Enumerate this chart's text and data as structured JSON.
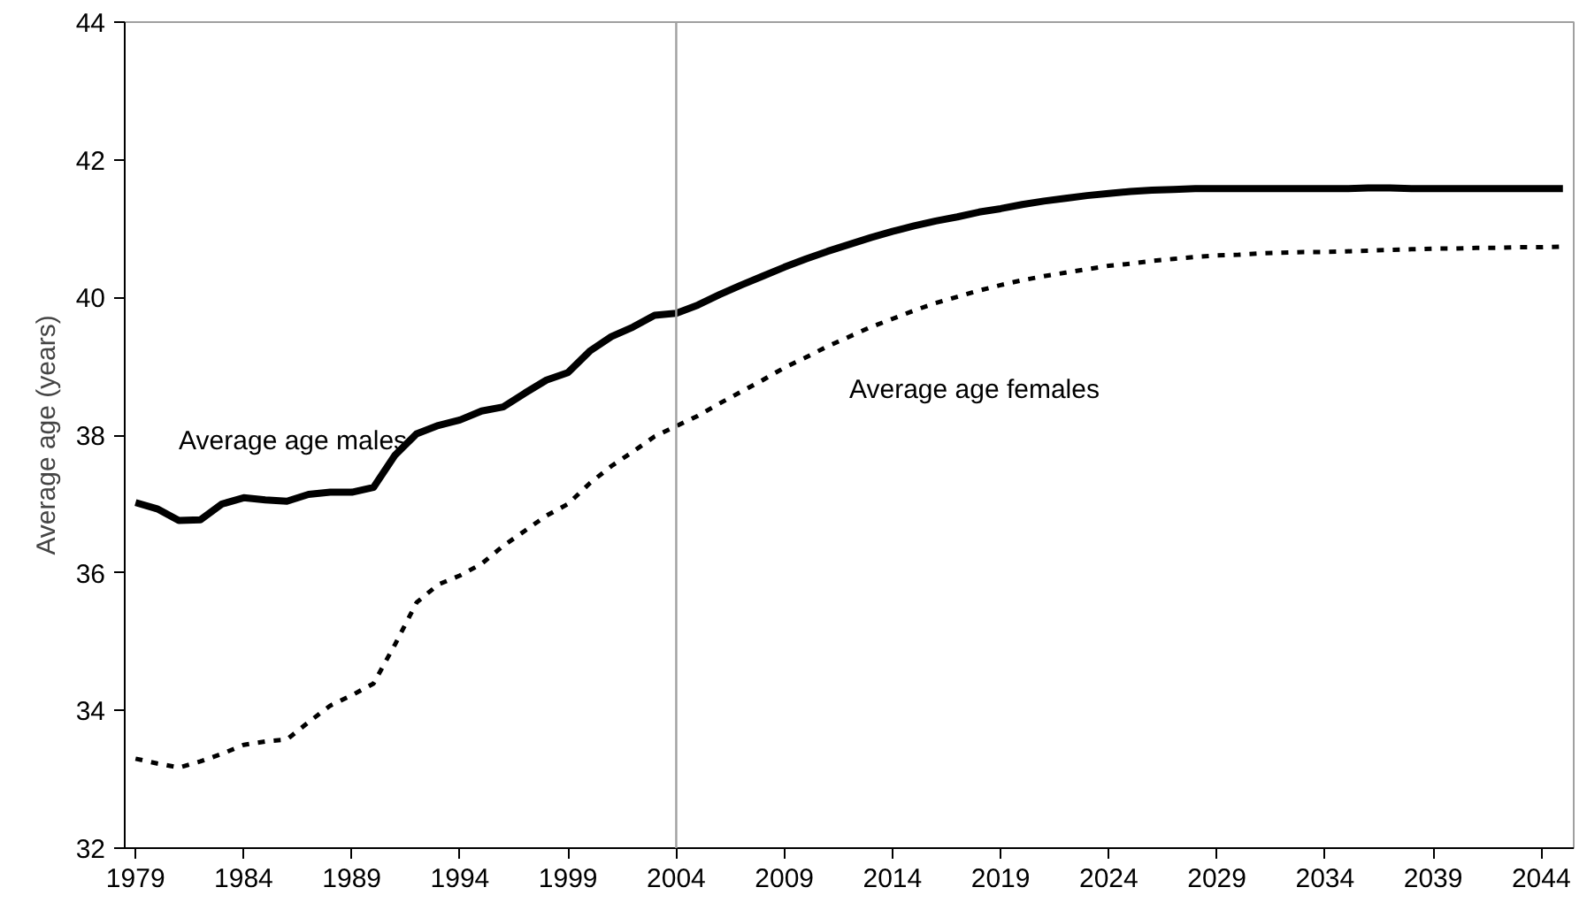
{
  "chart_data": {
    "type": "line",
    "ylabel": "Average age (years)",
    "x": [
      1979,
      1980,
      1981,
      1982,
      1983,
      1984,
      1985,
      1986,
      1987,
      1988,
      1989,
      1990,
      1991,
      1992,
      1993,
      1994,
      1995,
      1996,
      1997,
      1998,
      1999,
      2000,
      2001,
      2002,
      2003,
      2004,
      2005,
      2006,
      2007,
      2008,
      2009,
      2010,
      2011,
      2012,
      2013,
      2014,
      2015,
      2016,
      2017,
      2018,
      2019,
      2020,
      2021,
      2022,
      2023,
      2024,
      2025,
      2026,
      2027,
      2028,
      2029,
      2030,
      2031,
      2032,
      2033,
      2034,
      2035,
      2036,
      2037,
      2038,
      2039,
      2040,
      2041,
      2042,
      2043,
      2044,
      2045
    ],
    "series": [
      {
        "name": "Average age males",
        "color": "#000000",
        "line_style": "solid",
        "values": [
          37.02,
          36.93,
          36.76,
          36.77,
          37.0,
          37.09,
          37.06,
          37.04,
          37.14,
          37.17,
          37.17,
          37.24,
          37.71,
          38.02,
          38.14,
          38.22,
          38.35,
          38.41,
          38.61,
          38.8,
          38.91,
          39.22,
          39.43,
          39.57,
          39.74,
          39.77,
          39.89,
          40.04,
          40.18,
          40.31,
          40.44,
          40.56,
          40.67,
          40.77,
          40.87,
          40.96,
          41.04,
          41.11,
          41.17,
          41.24,
          41.29,
          41.35,
          41.4,
          41.44,
          41.48,
          41.51,
          41.54,
          41.56,
          41.57,
          41.58,
          41.58,
          41.58,
          41.58,
          41.58,
          41.58,
          41.58,
          41.58,
          41.59,
          41.59,
          41.58,
          41.58,
          41.58,
          41.58,
          41.58,
          41.58,
          41.58,
          41.58
        ]
      },
      {
        "name": "Average age females",
        "color": "#000000",
        "line_style": "dotted",
        "values": [
          33.3,
          33.23,
          33.17,
          33.26,
          33.37,
          33.5,
          33.55,
          33.58,
          33.83,
          34.07,
          34.22,
          34.39,
          34.96,
          35.57,
          35.83,
          35.96,
          36.13,
          36.39,
          36.61,
          36.83,
          37.0,
          37.3,
          37.55,
          37.76,
          37.98,
          38.13,
          38.28,
          38.46,
          38.63,
          38.8,
          38.98,
          39.13,
          39.29,
          39.43,
          39.57,
          39.69,
          39.81,
          39.92,
          40.01,
          40.1,
          40.18,
          40.25,
          40.31,
          40.36,
          40.41,
          40.46,
          40.49,
          40.53,
          40.56,
          40.59,
          40.61,
          40.62,
          40.64,
          40.65,
          40.66,
          40.66,
          40.67,
          40.68,
          40.69,
          40.7,
          40.71,
          40.71,
          40.72,
          40.72,
          40.73,
          40.73,
          40.74
        ]
      }
    ],
    "xlim": [
      1978.5,
      2045.5
    ],
    "ylim": [
      32,
      44
    ],
    "xticks": [
      1979,
      1984,
      1989,
      1994,
      1999,
      2004,
      2009,
      2014,
      2019,
      2024,
      2029,
      2034,
      2039,
      2044
    ],
    "yticks": [
      32,
      34,
      36,
      38,
      40,
      42,
      44
    ],
    "ref_lines": [
      {
        "axis": "x",
        "value": 2004,
        "color": "#a0a0a0"
      }
    ],
    "grid": false,
    "legend": false
  }
}
